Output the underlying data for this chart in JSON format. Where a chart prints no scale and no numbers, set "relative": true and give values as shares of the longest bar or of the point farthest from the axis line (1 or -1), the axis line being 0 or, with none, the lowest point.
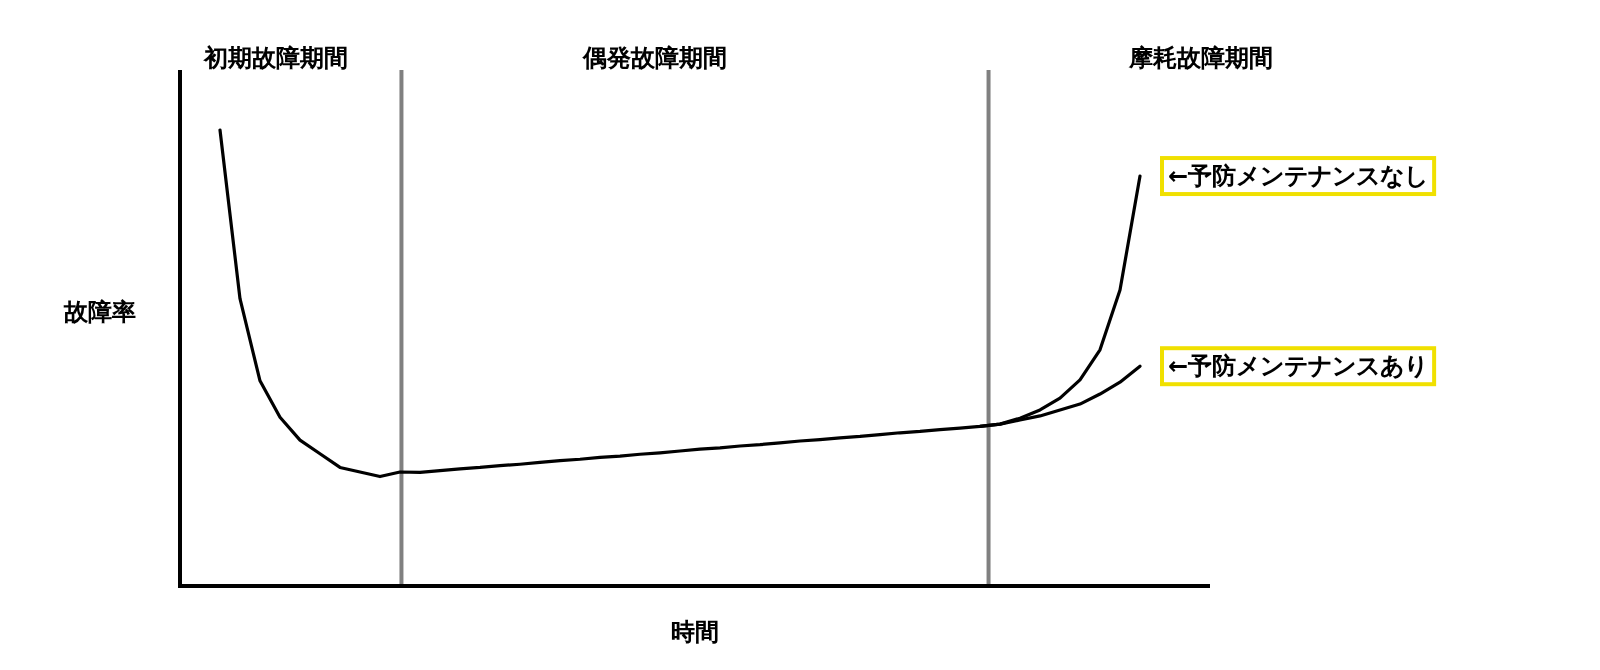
{
  "chart_data": {
    "type": "line",
    "relative": true,
    "xlabel": "時間",
    "ylabel": "故障率",
    "categories": [
      null,
      null,
      null,
      null,
      null,
      null,
      null,
      null,
      null,
      null,
      null,
      null,
      null,
      null,
      null,
      null,
      null,
      null,
      null,
      null,
      null,
      null,
      null,
      null,
      null,
      null,
      null,
      null,
      null,
      null,
      null,
      null,
      null,
      null,
      null,
      null,
      null,
      null,
      null,
      null,
      null,
      null,
      null,
      null,
      null,
      null,
      null
    ],
    "series": [
      {
        "name": "←予防メンテナンスなし",
        "color": "#000000",
        "values": [
          1.0,
          0.63,
          0.45,
          0.37,
          0.32,
          0.29,
          0.26,
          0.25,
          0.24,
          0.25,
          0.249,
          0.253,
          0.257,
          0.26,
          0.264,
          0.267,
          0.271,
          0.275,
          0.278,
          0.282,
          0.285,
          0.289,
          0.292,
          0.296,
          0.3,
          0.303,
          0.307,
          0.31,
          0.314,
          0.318,
          0.321,
          0.325,
          0.328,
          0.332,
          0.336,
          0.339,
          0.343,
          0.346,
          0.35,
          0.355,
          0.368,
          0.386,
          0.412,
          0.452,
          0.518,
          0.649,
          0.899
        ]
      },
      {
        "name": "←予防メンテナンスあり",
        "color": "#000000",
        "values": [
          null,
          null,
          null,
          null,
          null,
          null,
          null,
          null,
          null,
          null,
          null,
          null,
          null,
          null,
          null,
          null,
          null,
          null,
          null,
          null,
          null,
          null,
          null,
          null,
          null,
          null,
          null,
          null,
          null,
          null,
          null,
          null,
          null,
          null,
          null,
          null,
          null,
          null,
          0.35,
          0.355,
          0.364,
          0.373,
          0.386,
          0.399,
          0.421,
          0.447,
          0.482
        ]
      }
    ],
    "annotations": [
      "初期故障期間",
      "偶発故障期間",
      "摩耗故障期間"
    ]
  }
}
